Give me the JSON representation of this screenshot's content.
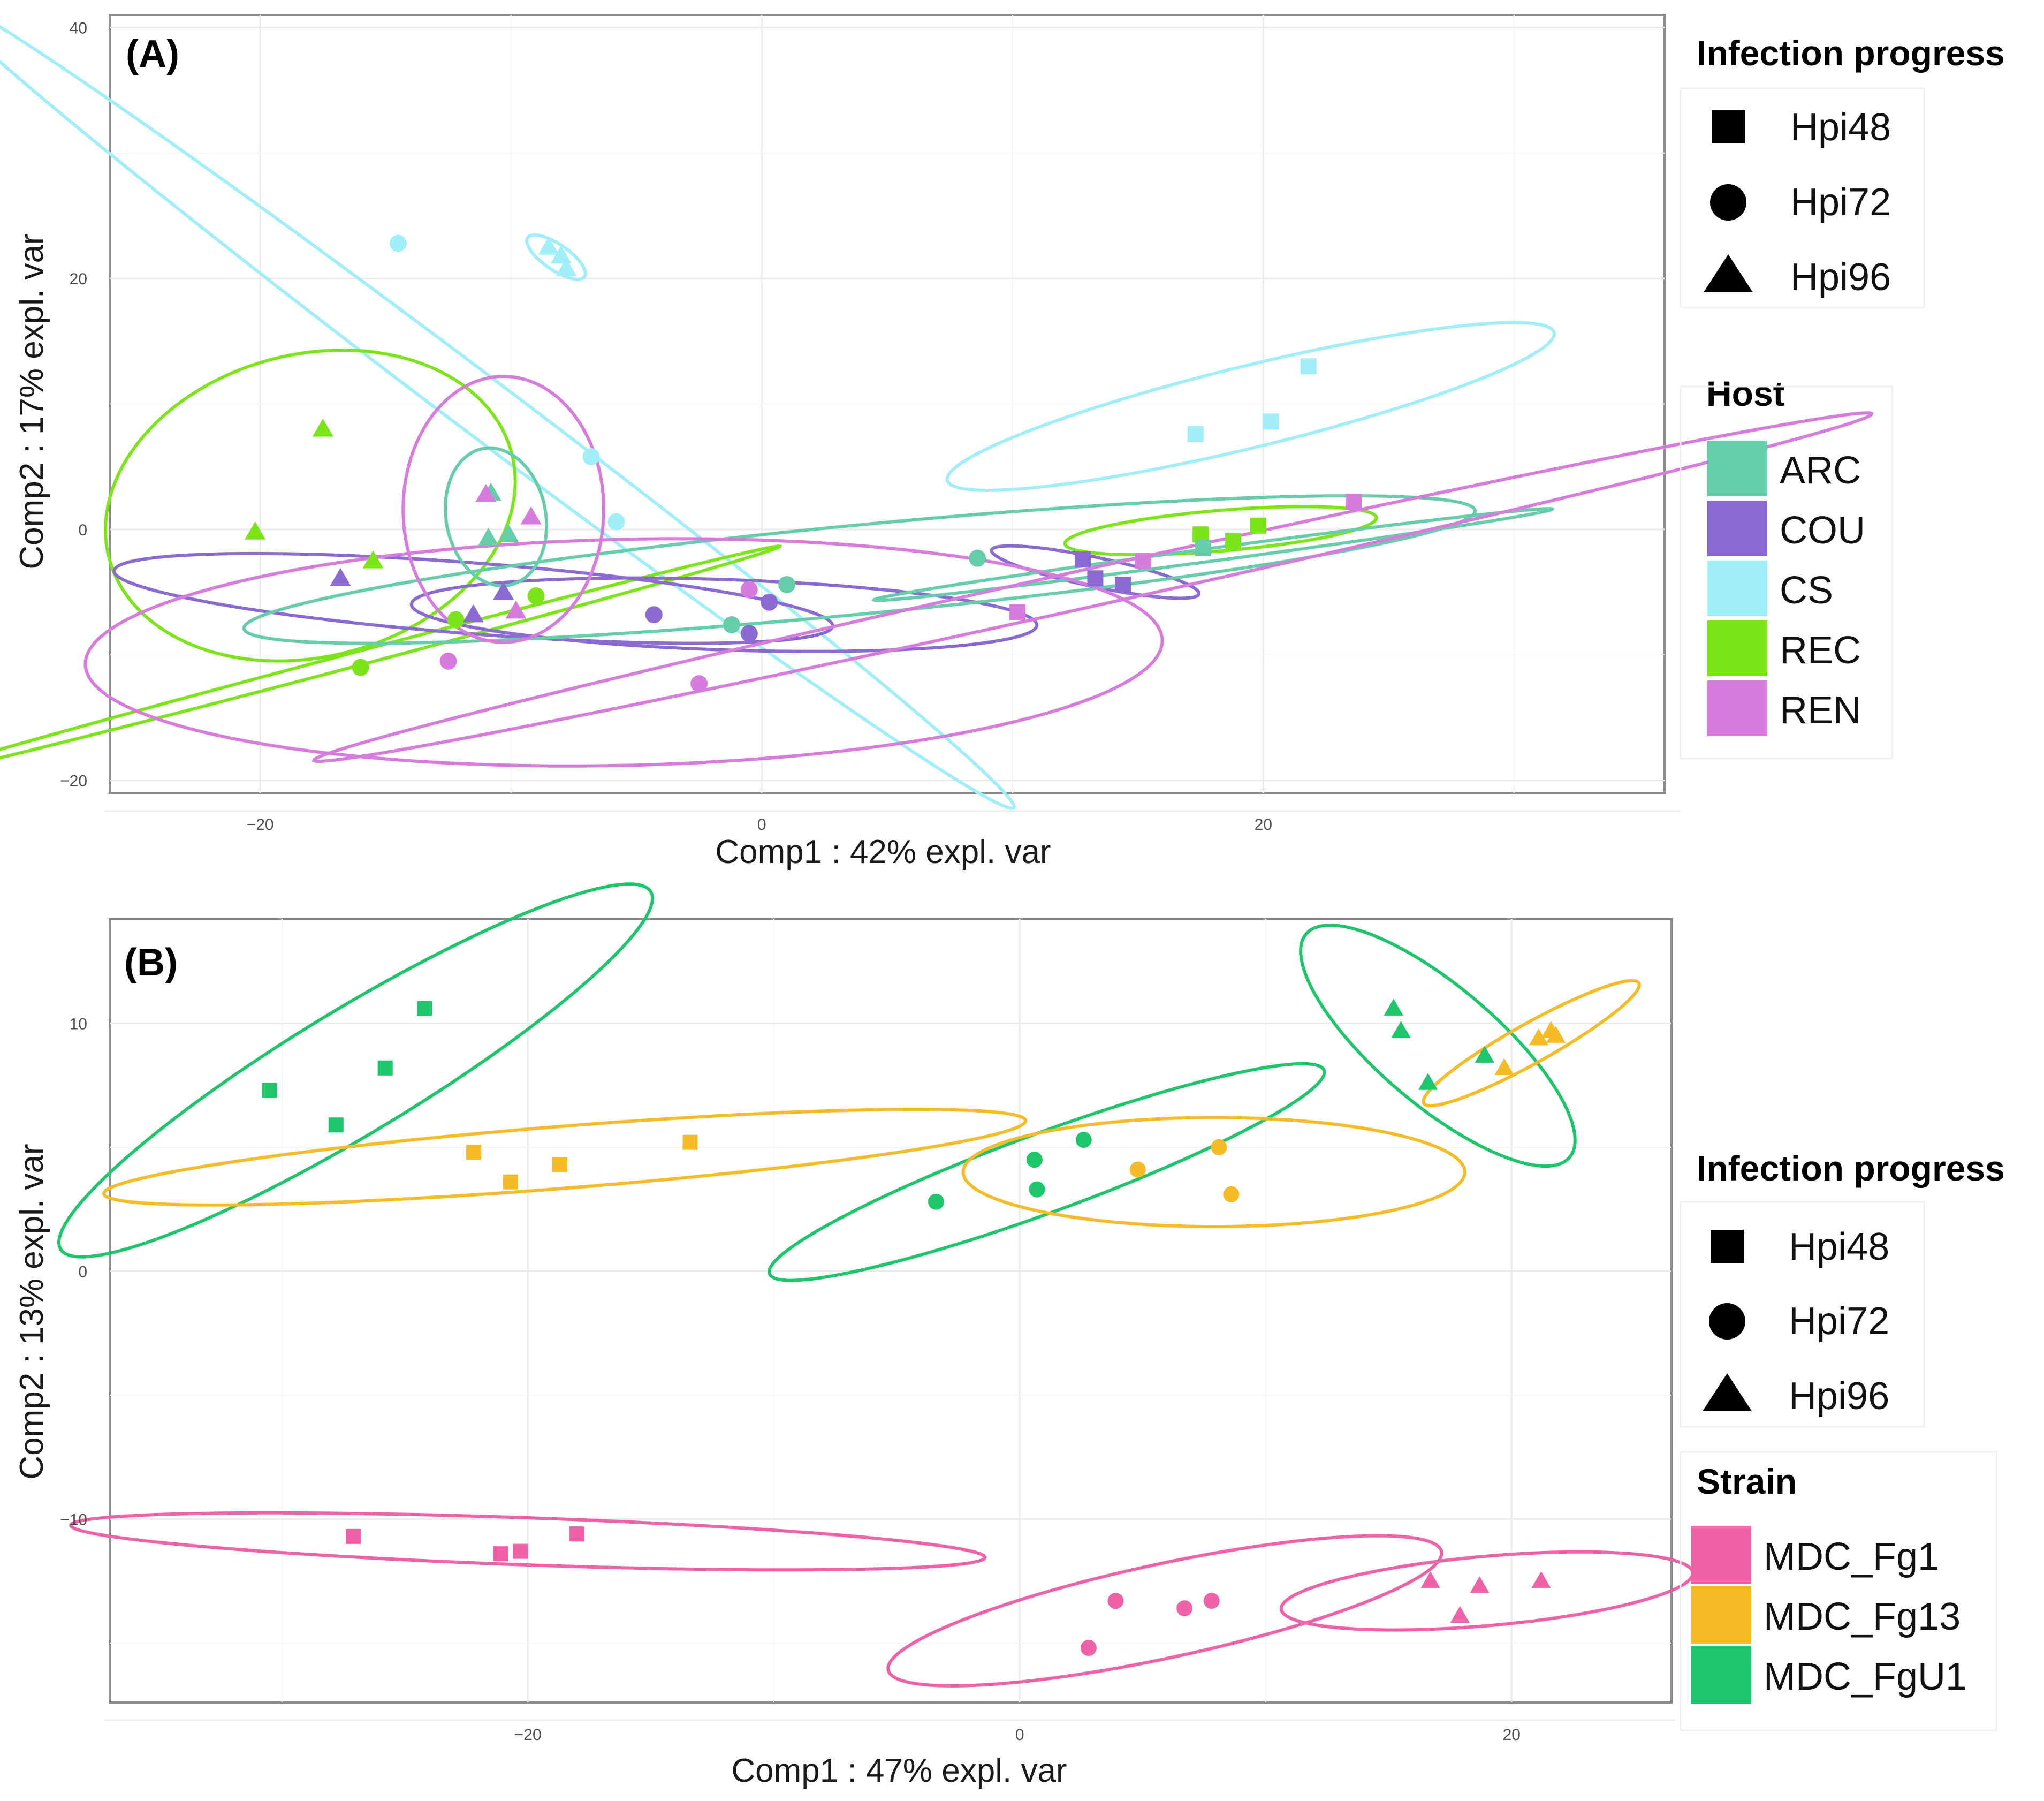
{
  "chart_data": [
    {
      "id": "A",
      "type": "scatter",
      "panel_label": "(A)",
      "xlabel": "Comp1 : 42% expl. var",
      "ylabel": "Comp2 : 17% expl. var",
      "xlim": [
        -26,
        36
      ],
      "ylim": [
        -21,
        41
      ],
      "xticks": [
        -20,
        0,
        20
      ],
      "yticks": [
        -20,
        0,
        20,
        40
      ],
      "grid": true,
      "colors": {
        "ARC": "#66CDAA",
        "COU": "#8B6BD1",
        "CS": "#A0EEF8",
        "REC": "#7CE51A",
        "REN": "#D77BDD"
      },
      "legends": [
        {
          "title": "Infection progress",
          "kind": "shape",
          "entries": [
            {
              "shape": "square",
              "label": "Hpi48"
            },
            {
              "shape": "circle",
              "label": "Hpi72"
            },
            {
              "shape": "triangle",
              "label": "Hpi96"
            }
          ]
        },
        {
          "title": "Host",
          "kind": "color",
          "entries": [
            {
              "key": "ARC",
              "label": "ARC"
            },
            {
              "key": "COU",
              "label": "COU"
            },
            {
              "key": "CS",
              "label": "CS"
            },
            {
              "key": "REC",
              "label": "REC"
            },
            {
              "key": "REN",
              "label": "REN"
            }
          ]
        }
      ],
      "points": [
        {
          "x": -14.5,
          "y": 22.8,
          "shape": "circle",
          "group": "CS"
        },
        {
          "x": -8.5,
          "y": 22.5,
          "shape": "triangle",
          "group": "CS"
        },
        {
          "x": -8.0,
          "y": 21.8,
          "shape": "triangle",
          "group": "CS"
        },
        {
          "x": -7.8,
          "y": 20.8,
          "shape": "triangle",
          "group": "CS"
        },
        {
          "x": -6.8,
          "y": 5.8,
          "shape": "circle",
          "group": "CS"
        },
        {
          "x": -5.8,
          "y": 0.6,
          "shape": "circle",
          "group": "CS"
        },
        {
          "x": 17.3,
          "y": 7.6,
          "shape": "square",
          "group": "CS"
        },
        {
          "x": 20.3,
          "y": 8.6,
          "shape": "square",
          "group": "CS"
        },
        {
          "x": 21.8,
          "y": 13.0,
          "shape": "square",
          "group": "CS"
        },
        {
          "x": -17.5,
          "y": 8.0,
          "shape": "triangle",
          "group": "REC"
        },
        {
          "x": -20.2,
          "y": -0.2,
          "shape": "triangle",
          "group": "REC"
        },
        {
          "x": -15.5,
          "y": -2.5,
          "shape": "triangle",
          "group": "REC"
        },
        {
          "x": -16.0,
          "y": -11.0,
          "shape": "circle",
          "group": "REC"
        },
        {
          "x": -12.2,
          "y": -7.2,
          "shape": "circle",
          "group": "REC"
        },
        {
          "x": -9.0,
          "y": -5.3,
          "shape": "circle",
          "group": "REC"
        },
        {
          "x": 17.5,
          "y": -0.4,
          "shape": "square",
          "group": "REC"
        },
        {
          "x": 18.8,
          "y": -0.9,
          "shape": "square",
          "group": "REC"
        },
        {
          "x": 19.8,
          "y": 0.3,
          "shape": "square",
          "group": "REC"
        },
        {
          "x": -16.8,
          "y": -3.9,
          "shape": "triangle",
          "group": "COU"
        },
        {
          "x": -11.5,
          "y": -6.8,
          "shape": "triangle",
          "group": "COU"
        },
        {
          "x": -10.3,
          "y": -5.0,
          "shape": "triangle",
          "group": "COU"
        },
        {
          "x": -4.3,
          "y": -6.8,
          "shape": "circle",
          "group": "COU"
        },
        {
          "x": -0.5,
          "y": -8.3,
          "shape": "circle",
          "group": "COU"
        },
        {
          "x": 0.3,
          "y": -5.8,
          "shape": "circle",
          "group": "COU"
        },
        {
          "x": 12.8,
          "y": -2.4,
          "shape": "square",
          "group": "COU"
        },
        {
          "x": 13.3,
          "y": -3.9,
          "shape": "square",
          "group": "COU"
        },
        {
          "x": 14.4,
          "y": -4.4,
          "shape": "square",
          "group": "COU"
        },
        {
          "x": -10.8,
          "y": 2.9,
          "shape": "triangle",
          "group": "ARC"
        },
        {
          "x": -10.9,
          "y": -0.7,
          "shape": "triangle",
          "group": "ARC"
        },
        {
          "x": -10.1,
          "y": -0.4,
          "shape": "triangle",
          "group": "ARC"
        },
        {
          "x": -1.2,
          "y": -7.6,
          "shape": "circle",
          "group": "ARC"
        },
        {
          "x": 1.0,
          "y": -4.4,
          "shape": "circle",
          "group": "ARC"
        },
        {
          "x": 8.6,
          "y": -2.3,
          "shape": "circle",
          "group": "ARC"
        },
        {
          "x": 17.6,
          "y": -1.5,
          "shape": "square",
          "group": "ARC"
        },
        {
          "x": -11.0,
          "y": 2.8,
          "shape": "triangle",
          "group": "REN"
        },
        {
          "x": -9.2,
          "y": 1.0,
          "shape": "triangle",
          "group": "REN"
        },
        {
          "x": -9.8,
          "y": -6.5,
          "shape": "triangle",
          "group": "REN"
        },
        {
          "x": -12.5,
          "y": -10.5,
          "shape": "circle",
          "group": "REN"
        },
        {
          "x": -2.5,
          "y": -12.3,
          "shape": "circle",
          "group": "REN"
        },
        {
          "x": -0.5,
          "y": -4.8,
          "shape": "circle",
          "group": "REN"
        },
        {
          "x": 10.2,
          "y": -6.6,
          "shape": "square",
          "group": "REN"
        },
        {
          "x": 15.2,
          "y": -2.5,
          "shape": "square",
          "group": "REN"
        },
        {
          "x": 23.6,
          "y": 2.2,
          "shape": "square",
          "group": "REN"
        }
      ],
      "ellipses": [
        {
          "group": "CS",
          "cx": -11.5,
          "cy": 10.3,
          "a": 39.0,
          "b": 1.6,
          "angle": -56.5
        },
        {
          "group": "CS",
          "cx": -8.2,
          "cy": 21.7,
          "a": 2.0,
          "b": 0.7,
          "angle": -60
        },
        {
          "group": "CS",
          "cx": 19.5,
          "cy": 9.8,
          "a": 13.5,
          "b": 3.0,
          "angle": 27
        },
        {
          "group": "REC",
          "cx": -18.0,
          "cy": 1.9,
          "a": 8.0,
          "b": 12.5,
          "angle": -10
        },
        {
          "group": "REC",
          "cx": -16.5,
          "cy": -10.5,
          "a": 19.5,
          "b": 0.5,
          "angle": 28
        },
        {
          "group": "REC",
          "cx": 18.3,
          "cy": -0.1,
          "a": 6.3,
          "b": 1.6,
          "angle": 10
        },
        {
          "group": "COU",
          "cx": -11.5,
          "cy": -5.5,
          "a": 14.5,
          "b": 2.8,
          "angle": -9
        },
        {
          "group": "COU",
          "cx": -1.5,
          "cy": -6.8,
          "a": 12.5,
          "b": 2.8,
          "angle": -4
        },
        {
          "group": "COU",
          "cx": 13.3,
          "cy": -3.4,
          "a": 4.5,
          "b": 1.1,
          "angle": -24
        },
        {
          "group": "ARC",
          "cx": -10.6,
          "cy": 1.0,
          "a": 5.5,
          "b": 2.0,
          "angle": -87
        },
        {
          "group": "ARC",
          "cx": 3.9,
          "cy": -3.2,
          "a": 25.0,
          "b": 3.5,
          "angle": 11
        },
        {
          "group": "ARC",
          "cx": 18.0,
          "cy": -2.0,
          "a": 14.0,
          "b": 0.5,
          "angle": 15
        },
        {
          "group": "REN",
          "cx": -10.3,
          "cy": 1.6,
          "a": 10.6,
          "b": 4.0,
          "angle": -90
        },
        {
          "group": "REN",
          "cx": -5.5,
          "cy": -9.8,
          "a": 21.5,
          "b": 9.0,
          "angle": 3
        },
        {
          "group": "REN",
          "cx": 13.2,
          "cy": -4.6,
          "a": 34.0,
          "b": 1.4,
          "angle": 24
        }
      ]
    },
    {
      "id": "B",
      "type": "scatter",
      "panel_label": "(B)",
      "xlabel": "Comp1 : 47% expl. var",
      "ylabel": "Comp2 : 13% expl. var",
      "xlim": [
        -37,
        26.5
      ],
      "ylim": [
        -17.4,
        14.2
      ],
      "xticks": [
        -20,
        0,
        20
      ],
      "yticks": [
        -10,
        0,
        10
      ],
      "grid": true,
      "colors": {
        "MDC_Fg1": "#F062A8",
        "MDC_Fg13": "#F5BC28",
        "MDC_FgU1": "#1DC66B"
      },
      "legends": [
        {
          "title": "Infection progress",
          "kind": "shape",
          "entries": [
            {
              "shape": "square",
              "label": "Hpi48"
            },
            {
              "shape": "circle",
              "label": "Hpi72"
            },
            {
              "shape": "triangle",
              "label": "Hpi96"
            }
          ]
        },
        {
          "title": "Strain",
          "kind": "color",
          "entries": [
            {
              "key": "MDC_Fg1",
              "label": "MDC_Fg1"
            },
            {
              "key": "MDC_Fg13",
              "label": "MDC_Fg13"
            },
            {
              "key": "MDC_FgU1",
              "label": "MDC_FgU1"
            }
          ]
        }
      ],
      "points": [
        {
          "x": -30.5,
          "y": 7.3,
          "shape": "square",
          "group": "MDC_FgU1"
        },
        {
          "x": -27.8,
          "y": 5.9,
          "shape": "square",
          "group": "MDC_FgU1"
        },
        {
          "x": -25.8,
          "y": 8.2,
          "shape": "square",
          "group": "MDC_FgU1"
        },
        {
          "x": -24.2,
          "y": 10.6,
          "shape": "square",
          "group": "MDC_FgU1"
        },
        {
          "x": -22.2,
          "y": 4.8,
          "shape": "square",
          "group": "MDC_Fg13"
        },
        {
          "x": -20.7,
          "y": 3.6,
          "shape": "square",
          "group": "MDC_Fg13"
        },
        {
          "x": -18.7,
          "y": 4.3,
          "shape": "square",
          "group": "MDC_Fg13"
        },
        {
          "x": -13.4,
          "y": 5.2,
          "shape": "square",
          "group": "MDC_Fg13"
        },
        {
          "x": -27.1,
          "y": -10.7,
          "shape": "square",
          "group": "MDC_Fg1"
        },
        {
          "x": -21.1,
          "y": -11.4,
          "shape": "square",
          "group": "MDC_Fg1"
        },
        {
          "x": -20.3,
          "y": -11.3,
          "shape": "square",
          "group": "MDC_Fg1"
        },
        {
          "x": -18.0,
          "y": -10.6,
          "shape": "square",
          "group": "MDC_Fg1"
        },
        {
          "x": -3.4,
          "y": 2.8,
          "shape": "circle",
          "group": "MDC_FgU1"
        },
        {
          "x": 0.6,
          "y": 4.5,
          "shape": "circle",
          "group": "MDC_FgU1"
        },
        {
          "x": 0.7,
          "y": 3.3,
          "shape": "circle",
          "group": "MDC_FgU1"
        },
        {
          "x": 2.6,
          "y": 5.3,
          "shape": "circle",
          "group": "MDC_FgU1"
        },
        {
          "x": 4.8,
          "y": 4.1,
          "shape": "circle",
          "group": "MDC_Fg13"
        },
        {
          "x": 8.1,
          "y": 5.0,
          "shape": "circle",
          "group": "MDC_Fg13"
        },
        {
          "x": 8.6,
          "y": 3.1,
          "shape": "circle",
          "group": "MDC_Fg13"
        },
        {
          "x": 2.8,
          "y": -15.2,
          "shape": "circle",
          "group": "MDC_Fg1"
        },
        {
          "x": 3.9,
          "y": -13.3,
          "shape": "circle",
          "group": "MDC_Fg1"
        },
        {
          "x": 6.7,
          "y": -13.6,
          "shape": "circle",
          "group": "MDC_Fg1"
        },
        {
          "x": 7.8,
          "y": -13.3,
          "shape": "circle",
          "group": "MDC_Fg1"
        },
        {
          "x": 15.2,
          "y": 10.6,
          "shape": "triangle",
          "group": "MDC_FgU1"
        },
        {
          "x": 15.5,
          "y": 9.7,
          "shape": "triangle",
          "group": "MDC_FgU1"
        },
        {
          "x": 16.6,
          "y": 7.6,
          "shape": "triangle",
          "group": "MDC_FgU1"
        },
        {
          "x": 18.9,
          "y": 8.7,
          "shape": "triangle",
          "group": "MDC_FgU1"
        },
        {
          "x": 19.7,
          "y": 8.2,
          "shape": "triangle",
          "group": "MDC_Fg13"
        },
        {
          "x": 21.1,
          "y": 9.4,
          "shape": "triangle",
          "group": "MDC_Fg13"
        },
        {
          "x": 21.6,
          "y": 9.7,
          "shape": "triangle",
          "group": "MDC_Fg13"
        },
        {
          "x": 21.8,
          "y": 9.5,
          "shape": "triangle",
          "group": "MDC_Fg13"
        },
        {
          "x": 16.7,
          "y": -12.5,
          "shape": "triangle",
          "group": "MDC_Fg1"
        },
        {
          "x": 17.9,
          "y": -13.9,
          "shape": "triangle",
          "group": "MDC_Fg1"
        },
        {
          "x": 18.7,
          "y": -12.7,
          "shape": "triangle",
          "group": "MDC_Fg1"
        },
        {
          "x": 21.2,
          "y": -12.5,
          "shape": "triangle",
          "group": "MDC_Fg1"
        }
      ],
      "ellipses": [
        {
          "group": "MDC_FgU1",
          "cx": -27.0,
          "cy": 8.1,
          "a": 14.0,
          "b": 2.5,
          "angle": 31
        },
        {
          "group": "MDC_Fg13",
          "cx": -18.5,
          "cy": 4.6,
          "a": 18.8,
          "b": 1.25,
          "angle": 4.5
        },
        {
          "group": "MDC_Fg1",
          "cx": -20.0,
          "cy": -10.9,
          "a": 18.6,
          "b": 0.95,
          "angle": -2
        },
        {
          "group": "MDC_FgU1",
          "cx": 1.1,
          "cy": 4.0,
          "a": 12.0,
          "b": 1.6,
          "angle": 20
        },
        {
          "group": "MDC_Fg13",
          "cx": 7.9,
          "cy": 4.0,
          "a": 10.2,
          "b": 2.2,
          "angle": 0
        },
        {
          "group": "MDC_Fg1",
          "cx": 5.9,
          "cy": -13.7,
          "a": 11.5,
          "b": 1.9,
          "angle": 12
        },
        {
          "group": "MDC_FgU1",
          "cx": 17.0,
          "cy": 9.1,
          "a": 7.0,
          "b": 2.4,
          "angle": -40
        },
        {
          "group": "MDC_Fg13",
          "cx": 20.8,
          "cy": 9.2,
          "a": 5.0,
          "b": 0.8,
          "angle": 29
        },
        {
          "group": "MDC_Fg1",
          "cx": 19.0,
          "cy": -12.9,
          "a": 8.4,
          "b": 1.4,
          "angle": 5
        }
      ]
    }
  ]
}
